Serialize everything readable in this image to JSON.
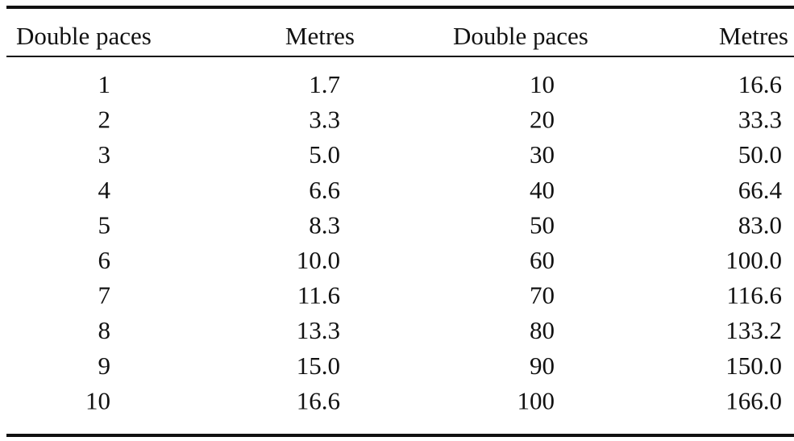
{
  "table": {
    "headers": [
      "Double paces",
      "Metres",
      "Double paces",
      "Metres"
    ],
    "rows": [
      [
        "1",
        "1.7",
        "10",
        "16.6"
      ],
      [
        "2",
        "3.3",
        "20",
        "33.3"
      ],
      [
        "3",
        "5.0",
        "30",
        "50.0"
      ],
      [
        "4",
        "6.6",
        "40",
        "66.4"
      ],
      [
        "5",
        "8.3",
        "50",
        "83.0"
      ],
      [
        "6",
        "10.0",
        "60",
        "100.0"
      ],
      [
        "7",
        "11.6",
        "70",
        "116.6"
      ],
      [
        "8",
        "13.3",
        "80",
        "133.2"
      ],
      [
        "9",
        "15.0",
        "90",
        "150.0"
      ],
      [
        "10",
        "16.6",
        "100",
        "166.0"
      ]
    ]
  }
}
